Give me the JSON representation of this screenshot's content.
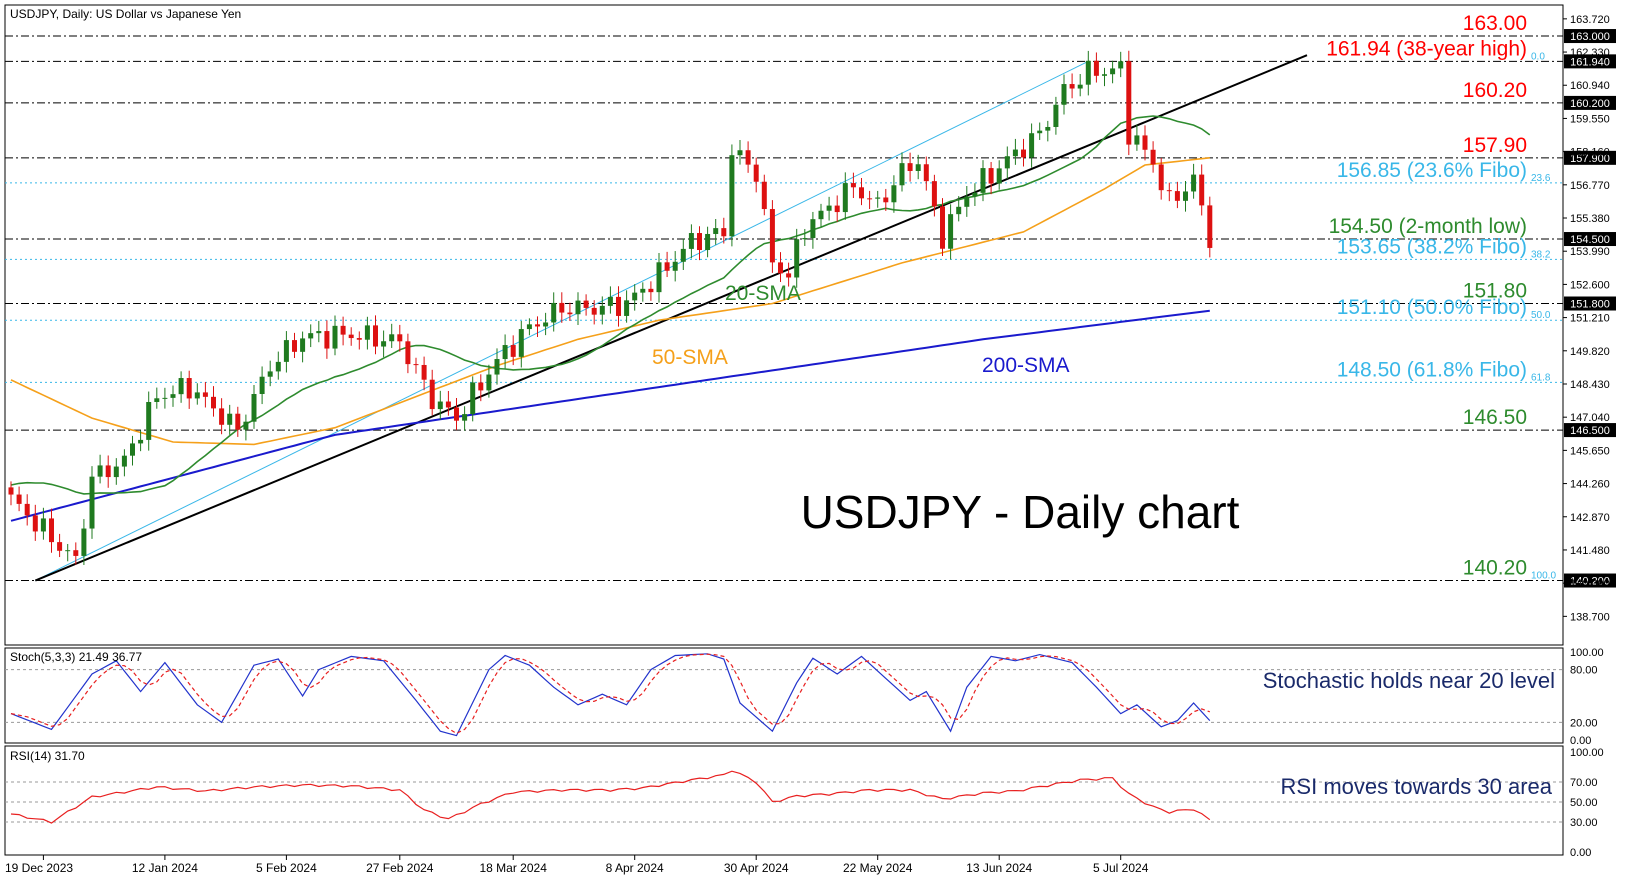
{
  "window_title": "USDJPY, Daily:  US Dollar vs Japanese Yen",
  "colors": {
    "bull": "#1f7a1f",
    "bear": "#dd1111",
    "sma20": "#2e8b2e",
    "sma50": "#f5a01a",
    "sma200": "#1a1acd",
    "fibo": "#39b7e8",
    "level_red": "#ff0000",
    "level_green": "#2e8b2e",
    "stoch_main": "#2233cc",
    "stoch_signal": "#e82020",
    "rsi": "#e82020"
  },
  "chart_data": [
    {
      "type": "candlestick",
      "title": "USDJPY - Daily chart",
      "ylim": [
        137.5,
        164.3
      ],
      "y_ticks": [
        "163.720",
        "162.330",
        "160.940",
        "159.550",
        "158.160",
        "156.770",
        "155.380",
        "153.990",
        "152.600",
        "151.210",
        "149.820",
        "148.430",
        "147.040",
        "145.650",
        "144.260",
        "142.870",
        "141.480",
        "140.090",
        "138.700"
      ],
      "x_labels": [
        "19 Dec 2023",
        "12 Jan 2024",
        "5 Feb 2024",
        "27 Feb 2024",
        "18 Mar 2024",
        "8 Apr 2024",
        "30 Apr 2024",
        "22 May 2024",
        "13 Jun 2024",
        "5 Jul 2024"
      ],
      "n_bars": 149,
      "close_anchors": [
        [
          0,
          143.6
        ],
        [
          8,
          141.0
        ],
        [
          10,
          144.5
        ],
        [
          14,
          145.2
        ],
        [
          18,
          147.9
        ],
        [
          22,
          148.3
        ],
        [
          28,
          146.5
        ],
        [
          32,
          149.2
        ],
        [
          36,
          150.4
        ],
        [
          42,
          150.5
        ],
        [
          48,
          150.2
        ],
        [
          52,
          147.8
        ],
        [
          55,
          147.0
        ],
        [
          60,
          149.4
        ],
        [
          64,
          150.8
        ],
        [
          68,
          151.6
        ],
        [
          72,
          151.6
        ],
        [
          76,
          151.8
        ],
        [
          80,
          153.0
        ],
        [
          84,
          154.4
        ],
        [
          88,
          154.8
        ],
        [
          89,
          158.2
        ],
        [
          92,
          157.3
        ],
        [
          94,
          153.5
        ],
        [
          96,
          153.0
        ],
        [
          98,
          155.0
        ],
        [
          101,
          155.8
        ],
        [
          104,
          156.7
        ],
        [
          107,
          155.9
        ],
        [
          110,
          157.3
        ],
        [
          112,
          157.8
        ],
        [
          115,
          154.6
        ],
        [
          118,
          156.4
        ],
        [
          121,
          157.2
        ],
        [
          124,
          158.1
        ],
        [
          127,
          158.9
        ],
        [
          130,
          160.7
        ],
        [
          133,
          161.5
        ],
        [
          137,
          161.6
        ],
        [
          138,
          159.0
        ],
        [
          141,
          157.7
        ],
        [
          143,
          156.0
        ],
        [
          146,
          157.0
        ],
        [
          148,
          154.5
        ]
      ],
      "price_labels": [
        {
          "price": 163.0,
          "text": "163.00",
          "color": "red",
          "box": "163.000"
        },
        {
          "price": 161.94,
          "text": "161.94 (38-year high)",
          "color": "red",
          "box": "161.940",
          "fibo": "0.0"
        },
        {
          "price": 160.2,
          "text": "160.20",
          "color": "red",
          "box": "160.200"
        },
        {
          "price": 157.9,
          "text": "157.90",
          "color": "red",
          "box": "157.900"
        },
        {
          "price": 156.85,
          "text": "156.85 (23.6% Fibo)",
          "color": "fibo",
          "fibo": "23.6"
        },
        {
          "price": 154.5,
          "text": "154.50 (2-month low)",
          "color": "green",
          "box": "154.500"
        },
        {
          "price": 153.65,
          "text": "153.65 (38.2% Fibo)",
          "color": "fibo",
          "fibo": "38.2"
        },
        {
          "price": 151.8,
          "text": "151.80",
          "color": "green",
          "box": "151.800"
        },
        {
          "price": 151.1,
          "text": "151.10 (50.0% Fibo)",
          "color": "fibo",
          "fibo": "50.0"
        },
        {
          "price": 148.5,
          "text": "148.50 (61.8% Fibo)",
          "color": "fibo",
          "fibo": "61.8"
        },
        {
          "price": 146.5,
          "text": "146.50",
          "color": "green",
          "box": "146.500"
        },
        {
          "price": 140.2,
          "text": "140.20",
          "color": "green",
          "box": "140.200",
          "fibo": "100.0"
        }
      ],
      "indicator_labels": {
        "sma20": "20-SMA",
        "sma50": "50-SMA",
        "sma200": "200-SMA"
      },
      "trendline": {
        "from": [
          3,
          140.2
        ],
        "to": [
          160,
          162.2
        ]
      },
      "channel_line": {
        "from": [
          3,
          140.2
        ],
        "to": [
          133,
          161.94
        ]
      },
      "sma200_anchors": [
        [
          0,
          142.7
        ],
        [
          40,
          146.3
        ],
        [
          80,
          148.3
        ],
        [
          120,
          150.3
        ],
        [
          148,
          151.5
        ]
      ],
      "sma50_anchors": [
        [
          0,
          148.6
        ],
        [
          10,
          147.0
        ],
        [
          20,
          146.0
        ],
        [
          30,
          145.9
        ],
        [
          40,
          146.6
        ],
        [
          50,
          147.9
        ],
        [
          60,
          149.2
        ],
        [
          70,
          150.3
        ],
        [
          80,
          151.1
        ],
        [
          94,
          151.8
        ],
        [
          110,
          153.5
        ],
        [
          125,
          154.8
        ],
        [
          135,
          156.6
        ],
        [
          140,
          157.6
        ],
        [
          148,
          157.9
        ]
      ]
    },
    {
      "type": "line",
      "title": "Stoch(5,3,3) 21.49 36.77",
      "ylim": [
        0,
        100
      ],
      "y_ticks": [
        "100.00",
        "80.00",
        "20.00",
        "0.00"
      ],
      "annotation": "Stochastic holds near 20 level",
      "anchors": [
        [
          0,
          30
        ],
        [
          5,
          12
        ],
        [
          10,
          75
        ],
        [
          13,
          90
        ],
        [
          16,
          55
        ],
        [
          19,
          88
        ],
        [
          23,
          40
        ],
        [
          26,
          20
        ],
        [
          30,
          85
        ],
        [
          33,
          92
        ],
        [
          36,
          50
        ],
        [
          38,
          80
        ],
        [
          42,
          95
        ],
        [
          46,
          90
        ],
        [
          50,
          45
        ],
        [
          53,
          10
        ],
        [
          55,
          5
        ],
        [
          59,
          80
        ],
        [
          61,
          96
        ],
        [
          64,
          85
        ],
        [
          67,
          60
        ],
        [
          70,
          40
        ],
        [
          73,
          52
        ],
        [
          76,
          40
        ],
        [
          79,
          80
        ],
        [
          82,
          96
        ],
        [
          86,
          98
        ],
        [
          88,
          92
        ],
        [
          90,
          42
        ],
        [
          94,
          10
        ],
        [
          97,
          65
        ],
        [
          99,
          93
        ],
        [
          102,
          75
        ],
        [
          105,
          95
        ],
        [
          108,
          70
        ],
        [
          111,
          45
        ],
        [
          113,
          55
        ],
        [
          116,
          10
        ],
        [
          118,
          60
        ],
        [
          121,
          95
        ],
        [
          124,
          90
        ],
        [
          127,
          97
        ],
        [
          131,
          88
        ],
        [
          134,
          60
        ],
        [
          137,
          30
        ],
        [
          139,
          40
        ],
        [
          142,
          15
        ],
        [
          144,
          22
        ],
        [
          146,
          42
        ],
        [
          148,
          22
        ]
      ]
    },
    {
      "type": "line",
      "title": "RSI(14) 31.70",
      "ylim": [
        0,
        100
      ],
      "y_ticks": [
        "100.00",
        "70.00",
        "50.00",
        "30.00",
        "0.00"
      ],
      "annotation": "RSI moves towards 30 area",
      "anchors": [
        [
          0,
          38
        ],
        [
          5,
          30
        ],
        [
          10,
          55
        ],
        [
          14,
          60
        ],
        [
          18,
          65
        ],
        [
          24,
          61
        ],
        [
          30,
          65
        ],
        [
          36,
          67
        ],
        [
          42,
          66
        ],
        [
          48,
          62
        ],
        [
          51,
          42
        ],
        [
          54,
          33
        ],
        [
          58,
          48
        ],
        [
          62,
          60
        ],
        [
          68,
          62
        ],
        [
          74,
          62
        ],
        [
          78,
          64
        ],
        [
          84,
          72
        ],
        [
          88,
          77
        ],
        [
          89,
          82
        ],
        [
          92,
          70
        ],
        [
          94,
          50
        ],
        [
          97,
          56
        ],
        [
          101,
          58
        ],
        [
          106,
          62
        ],
        [
          111,
          62
        ],
        [
          115,
          53
        ],
        [
          120,
          59
        ],
        [
          124,
          61
        ],
        [
          129,
          68
        ],
        [
          132,
          72
        ],
        [
          136,
          74
        ],
        [
          138,
          58
        ],
        [
          141,
          45
        ],
        [
          143,
          40
        ],
        [
          146,
          43
        ],
        [
          148,
          32
        ]
      ]
    }
  ]
}
